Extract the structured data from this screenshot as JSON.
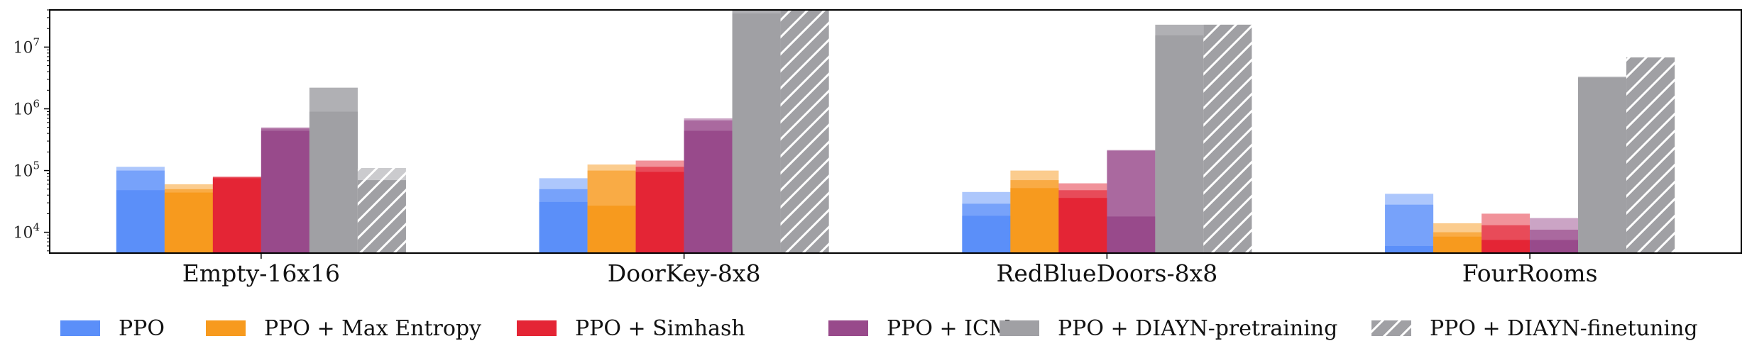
{
  "chart_data": {
    "type": "bar",
    "yscale": "log",
    "ylim": [
      4600,
      40000000
    ],
    "yticks": [
      {
        "value": 10000,
        "base": "10",
        "exp": "4"
      },
      {
        "value": 100000,
        "base": "10",
        "exp": "5"
      },
      {
        "value": 1000000,
        "base": "10",
        "exp": "6"
      },
      {
        "value": 10000000,
        "base": "10",
        "exp": "7"
      }
    ],
    "categories": [
      "Empty-16x16",
      "DoorKey-8x8",
      "RedBlueDoors-8x8",
      "FourRooms"
    ],
    "legend_position": "bottom",
    "grid": false,
    "series": [
      {
        "name": "PPO",
        "color": "#5b8ff9",
        "hatch": false,
        "stacks": [
          [
            48000,
            100000,
            115000
          ],
          [
            31000,
            50000,
            75000
          ],
          [
            18500,
            29000,
            45000
          ],
          [
            6000,
            28000,
            42000
          ]
        ]
      },
      {
        "name": "PPO + Max Entropy",
        "color": "#f79a1e",
        "hatch": false,
        "stacks": [
          [
            44000,
            50000,
            60000
          ],
          [
            27000,
            100000,
            125000
          ],
          [
            52000,
            70000,
            100000
          ],
          [
            8500,
            10000,
            14000
          ]
        ]
      },
      {
        "name": "PPO + Simhash",
        "color": "#e42535",
        "hatch": false,
        "stacks": [
          [
            75000,
            78000,
            80000
          ],
          [
            95000,
            115000,
            145000
          ],
          [
            36000,
            48000,
            62000
          ],
          [
            7500,
            13000,
            20000
          ]
        ]
      },
      {
        "name": "PPO + ICM",
        "color": "#984a8b",
        "hatch": false,
        "stacks": [
          [
            440000,
            480000,
            500000
          ],
          [
            440000,
            650000,
            700000
          ],
          [
            18000,
            210000,
            215000
          ],
          [
            7500,
            11000,
            17000
          ]
        ]
      },
      {
        "name": "PPO + DIAYN-pretraining",
        "color": "#a0a0a4",
        "hatch": false,
        "stacks": [
          [
            900000,
            2200000,
            2200000
          ],
          [
            35000000,
            40000000,
            40000000
          ],
          [
            15500000,
            23000000,
            23000000
          ],
          [
            3200000,
            3300000,
            3300000
          ]
        ]
      },
      {
        "name": "PPO + DIAYN-finetuning",
        "color": "#a0a0a4",
        "hatch": true,
        "stacks": [
          [
            70000,
            90000,
            110000
          ],
          [
            40000000,
            40000000,
            40000000
          ],
          [
            23000000,
            23000000,
            23000000
          ],
          [
            6800000,
            6800000,
            6800000
          ]
        ]
      }
    ]
  }
}
